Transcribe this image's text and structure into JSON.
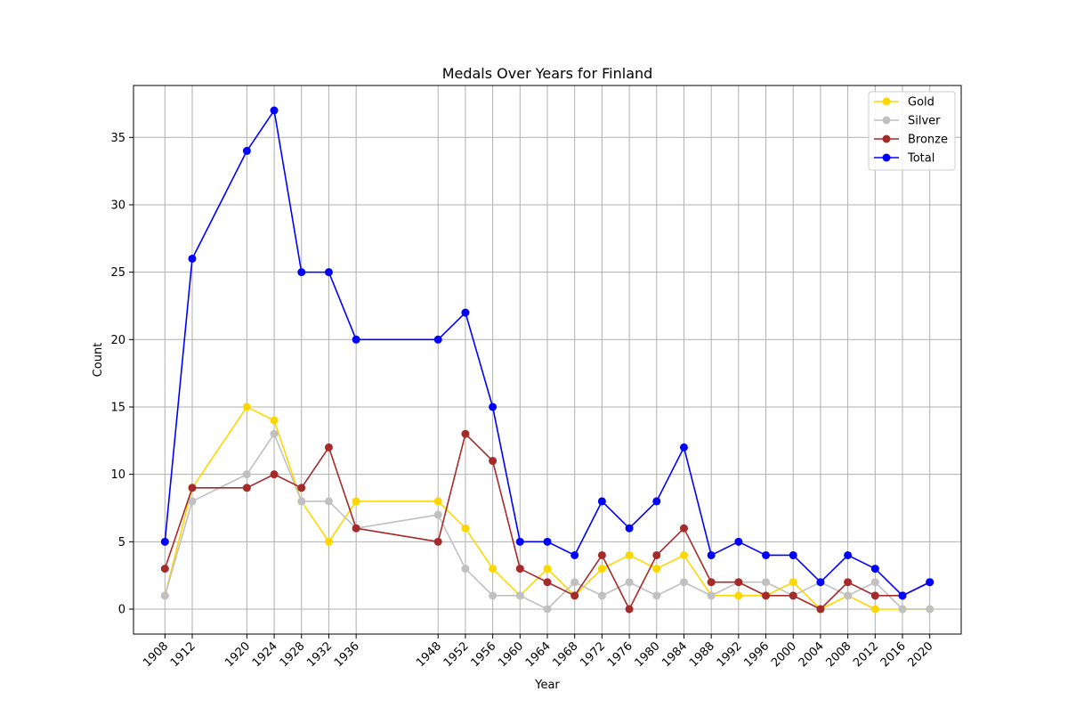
{
  "chart_data": {
    "type": "line",
    "title": "Medals Over Years for Finland",
    "xlabel": "Year",
    "ylabel": "Count",
    "x": [
      1908,
      1912,
      1920,
      1924,
      1928,
      1932,
      1936,
      1948,
      1952,
      1956,
      1960,
      1964,
      1968,
      1972,
      1976,
      1980,
      1984,
      1988,
      1992,
      1996,
      2000,
      2004,
      2008,
      2012,
      2016,
      2020
    ],
    "x_tick_labels": [
      "1908",
      "1912",
      "1920",
      "1924",
      "1928",
      "1932",
      "1936",
      "1948",
      "1952",
      "1956",
      "1960",
      "1964",
      "1968",
      "1972",
      "1976",
      "1980",
      "1984",
      "1988",
      "1992",
      "1996",
      "2000",
      "2004",
      "2008",
      "2012",
      "2016",
      "2020"
    ],
    "xlim": [
      1903.4,
      2024.6
    ],
    "ylim": [
      -1.85,
      38.85
    ],
    "y_ticks": [
      0,
      5,
      10,
      15,
      20,
      25,
      30,
      35
    ],
    "y_tick_labels": [
      "0",
      "5",
      "10",
      "15",
      "20",
      "25",
      "30",
      "35"
    ],
    "grid": true,
    "legend_position": "top-right",
    "series": [
      {
        "name": "Gold",
        "color": "#FFD700",
        "values": [
          1,
          9,
          15,
          14,
          8,
          5,
          8,
          8,
          6,
          3,
          1,
          3,
          1,
          3,
          4,
          3,
          4,
          1,
          1,
          1,
          2,
          0,
          1,
          0,
          0,
          0
        ]
      },
      {
        "name": "Silver",
        "color": "#C0C0C0",
        "values": [
          1,
          8,
          10,
          13,
          8,
          8,
          6,
          7,
          3,
          1,
          1,
          0,
          2,
          1,
          2,
          1,
          2,
          1,
          2,
          2,
          1,
          2,
          1,
          2,
          0,
          0
        ]
      },
      {
        "name": "Bronze",
        "color": "#A52A2A",
        "values": [
          3,
          9,
          9,
          10,
          9,
          12,
          6,
          5,
          13,
          11,
          3,
          2,
          1,
          4,
          0,
          4,
          6,
          2,
          2,
          1,
          1,
          0,
          2,
          1,
          1,
          2
        ]
      },
      {
        "name": "Total",
        "color": "#0000FF",
        "values": [
          5,
          26,
          34,
          37,
          25,
          25,
          20,
          20,
          22,
          15,
          5,
          5,
          4,
          8,
          6,
          8,
          12,
          4,
          5,
          4,
          4,
          2,
          4,
          3,
          1,
          2
        ]
      }
    ]
  }
}
